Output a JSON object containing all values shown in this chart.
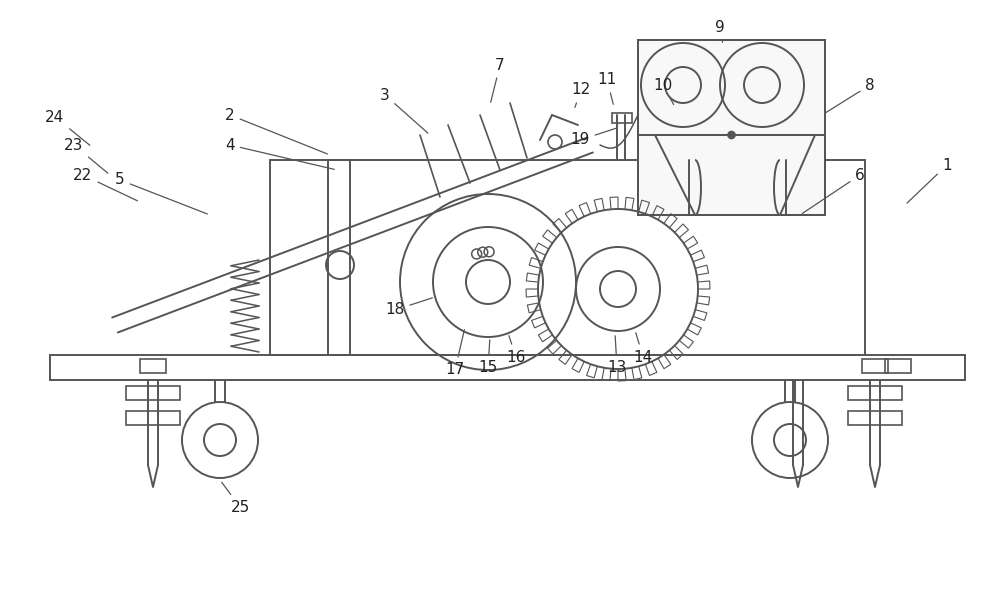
{
  "bg_color": "#ffffff",
  "line_color": "#555555",
  "lw": 1.4,
  "figsize": [
    10.0,
    5.95
  ],
  "dpi": 100
}
